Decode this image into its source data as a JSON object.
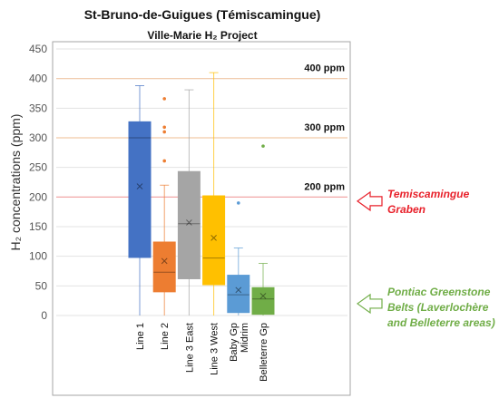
{
  "chart_data": {
    "type": "box",
    "title": "St-Bruno-de-Guigues (Témiscamingue)",
    "subtitle": "Ville-Marie H₂ Project",
    "ylabel": "H₂ concentrations (ppm)",
    "xlabel": "",
    "ylim": [
      0,
      450
    ],
    "yticks": [
      0,
      50,
      100,
      150,
      200,
      250,
      300,
      350,
      400,
      450
    ],
    "grid": true,
    "reference_lines": [
      {
        "value": 400,
        "label": "400 ppm",
        "color": "#f2c9a8"
      },
      {
        "value": 300,
        "label": "300 ppm",
        "color": "#f2c9a8"
      },
      {
        "value": 200,
        "label": "200 ppm",
        "color": "#f4a0a0"
      }
    ],
    "categories": [
      "Line 1",
      "Line 2",
      "Line 3 East",
      "Line 3 West",
      "Baby Gp Midrim",
      "Belleterre Gp"
    ],
    "category_lines": [
      [
        "Line 1"
      ],
      [
        "Line 2"
      ],
      [
        "Line 3 East"
      ],
      [
        "Line 3 West"
      ],
      [
        "Baby Gp",
        "Midrim"
      ],
      [
        "Belleterre Gp"
      ]
    ],
    "series": [
      {
        "category": "Line 1",
        "color": "#4472c4",
        "whisker_low": 0,
        "q1": 98,
        "median": 300,
        "q3": 327,
        "whisker_high": 388,
        "mean": 218,
        "outliers": []
      },
      {
        "category": "Line 2",
        "color": "#ed7d31",
        "whisker_low": 0,
        "q1": 40,
        "median": 73,
        "q3": 124,
        "whisker_high": 220,
        "mean": 92,
        "outliers": [
          261,
          310,
          318,
          366
        ]
      },
      {
        "category": "Line 3 East",
        "color": "#a5a5a5",
        "whisker_low": 0,
        "q1": 62,
        "median": 155,
        "q3": 243,
        "whisker_high": 381,
        "mean": 157,
        "outliers": []
      },
      {
        "category": "Line 3 West",
        "color": "#ffc000",
        "whisker_low": 0,
        "q1": 52,
        "median": 97,
        "q3": 202,
        "whisker_high": 410,
        "mean": 131,
        "outliers": []
      },
      {
        "category": "Baby Gp Midrim",
        "color": "#5b9bd5",
        "whisker_low": 0,
        "q1": 5,
        "median": 35,
        "q3": 68,
        "whisker_high": 114,
        "mean": 43,
        "outliers": [
          190
        ]
      },
      {
        "category": "Belleterre Gp",
        "color": "#70ad47",
        "whisker_low": 0,
        "q1": 2,
        "median": 28,
        "q3": 47,
        "whisker_high": 88,
        "mean": 33,
        "outliers": [
          286
        ]
      }
    ],
    "annotations": [
      {
        "lines": [
          "Temiscamingue",
          "Graben"
        ],
        "color": "#e8202a",
        "arrow_value": 193
      },
      {
        "lines": [
          "Pontiac Greenstone",
          "Belts (Laverlochère",
          "and Belleterre areas)"
        ],
        "color": "#70ad47",
        "arrow_value": 20
      }
    ]
  }
}
